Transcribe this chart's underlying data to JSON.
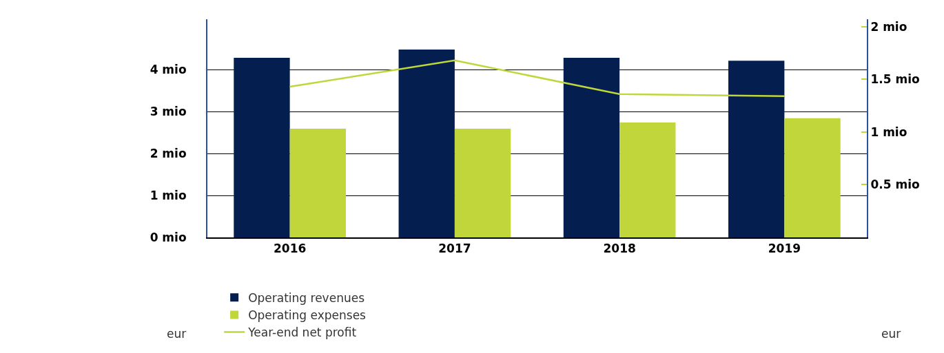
{
  "chart_data": {
    "type": "bar",
    "categories": [
      "2016",
      "2017",
      "2018",
      "2019"
    ],
    "series": [
      {
        "name": "Operating revenues",
        "color": "#041e50",
        "values": [
          4.28,
          4.48,
          4.28,
          4.21
        ]
      },
      {
        "name": "Operating expenses",
        "color": "#c0d63b",
        "values": [
          2.59,
          2.59,
          2.74,
          2.84
        ]
      },
      {
        "name": "Year-end net profit",
        "color": "#c0d63b",
        "type": "line",
        "axis": "y2",
        "values": [
          1.43,
          1.68,
          1.36,
          1.34
        ]
      }
    ],
    "annotations": [
      "eur",
      "eur"
    ],
    "ylim": [
      0,
      5.2
    ],
    "yticks": [
      {
        "value": 0,
        "label": "0 mio"
      },
      {
        "value": 1,
        "label": "1 mio"
      },
      {
        "value": 2,
        "label": "2 mio"
      },
      {
        "value": 3,
        "label": "3 mio"
      },
      {
        "value": 4,
        "label": "4 mio"
      }
    ],
    "y2lim": [
      0,
      2.07
    ],
    "y2ticks": [
      {
        "value": 0.5,
        "label": "0.5 mio"
      },
      {
        "value": 1,
        "label": "1 mio"
      },
      {
        "value": 1.5,
        "label": "1.5 mio"
      },
      {
        "value": 2,
        "label": "2 mio"
      }
    ],
    "grid": "y",
    "legend": "bottom left"
  }
}
